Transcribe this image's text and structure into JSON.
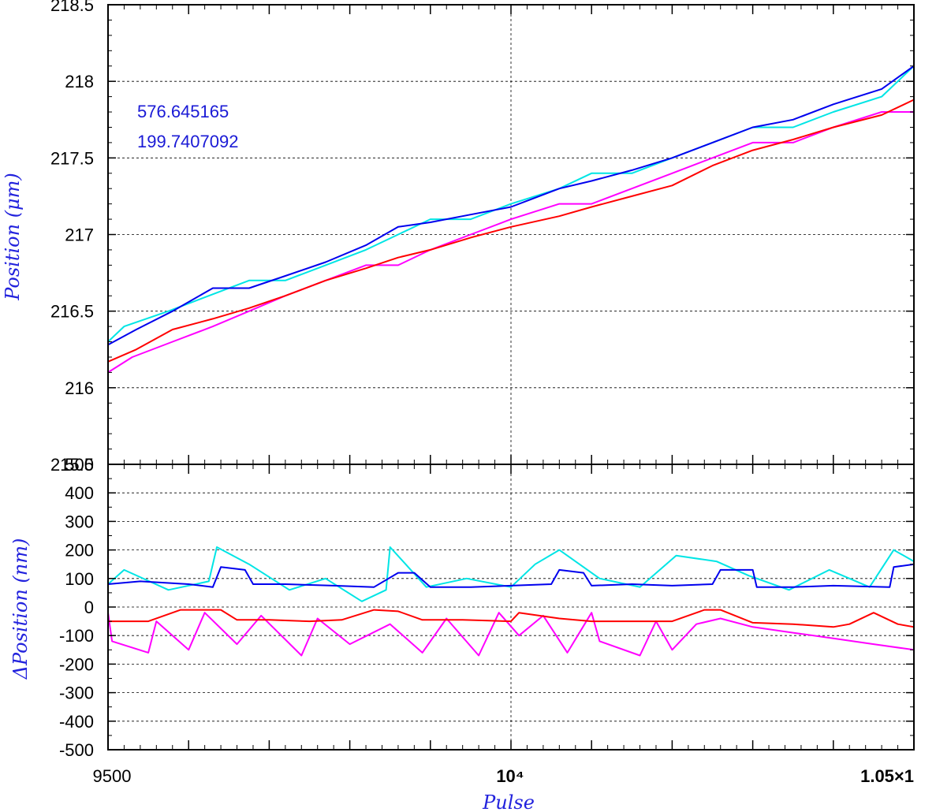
{
  "chart_data": [
    {
      "type": "line",
      "ylabel": "Position (μm)",
      "xlim": [
        9500,
        10500
      ],
      "ylim": [
        215.5,
        218.5
      ],
      "y_ticks": [
        "218.5",
        "218",
        "217.5",
        "217",
        "216.5",
        "216",
        "215.5"
      ],
      "grid": true,
      "annotations": [
        "576.645165",
        "199.7407092"
      ],
      "annotation_color": "#1a1ad6",
      "series": [
        {
          "color": "#00e5e5",
          "x": [
            9500,
            9520,
            9575,
            9625,
            9675,
            9720,
            9770,
            9820,
            9860,
            9900,
            9950,
            10000,
            10060,
            10100,
            10150,
            10200,
            10250,
            10300,
            10350,
            10400,
            10460,
            10500
          ],
          "y": [
            216.3,
            216.4,
            216.5,
            216.6,
            216.7,
            216.7,
            216.8,
            216.9,
            217.0,
            217.1,
            217.1,
            217.2,
            217.3,
            217.4,
            217.4,
            217.5,
            217.6,
            217.7,
            217.7,
            217.8,
            217.9,
            218.1
          ]
        },
        {
          "color": "#0000ee",
          "x": [
            9500,
            9535,
            9580,
            9630,
            9675,
            9720,
            9770,
            9820,
            9860,
            9900,
            9950,
            10000,
            10060,
            10100,
            10150,
            10200,
            10250,
            10300,
            10350,
            10400,
            10460,
            10500
          ],
          "y": [
            216.28,
            216.38,
            216.5,
            216.65,
            216.65,
            216.73,
            216.82,
            216.93,
            217.05,
            217.08,
            217.13,
            217.18,
            217.3,
            217.35,
            217.42,
            217.5,
            217.6,
            217.7,
            217.75,
            217.85,
            217.95,
            218.1
          ]
        },
        {
          "color": "#ff00ff",
          "x": [
            9500,
            9530,
            9580,
            9630,
            9675,
            9720,
            9770,
            9820,
            9860,
            9900,
            9950,
            10000,
            10060,
            10100,
            10150,
            10200,
            10250,
            10300,
            10350,
            10400,
            10460,
            10500
          ],
          "y": [
            216.1,
            216.2,
            216.3,
            216.4,
            216.5,
            216.6,
            216.7,
            216.8,
            216.8,
            216.9,
            217.0,
            217.1,
            217.2,
            217.2,
            217.3,
            217.4,
            217.5,
            217.6,
            217.6,
            217.7,
            217.8,
            217.8
          ]
        },
        {
          "color": "#ff0000",
          "x": [
            9500,
            9535,
            9580,
            9630,
            9675,
            9720,
            9770,
            9820,
            9860,
            9900,
            9950,
            10000,
            10060,
            10100,
            10150,
            10200,
            10250,
            10300,
            10350,
            10400,
            10460,
            10500
          ],
          "y": [
            216.17,
            216.25,
            216.38,
            216.45,
            216.52,
            216.6,
            216.7,
            216.78,
            216.85,
            216.9,
            216.98,
            217.05,
            217.12,
            217.18,
            217.25,
            217.32,
            217.45,
            217.55,
            217.62,
            217.7,
            217.78,
            217.88
          ]
        }
      ]
    },
    {
      "type": "line",
      "xlabel": "Pulse",
      "ylabel": "ΔPosition (nm)",
      "xlim": [
        9500,
        10500
      ],
      "ylim": [
        -500,
        500
      ],
      "y_ticks": [
        "500",
        "400",
        "300",
        "200",
        "100",
        "0",
        "-100",
        "-200",
        "-300",
        "-400",
        "-500"
      ],
      "x_ticks": [
        "9500",
        "10⁴",
        "1.05×1"
      ],
      "grid": true,
      "series": [
        {
          "color": "#00e5e5",
          "x": [
            9500,
            9520,
            9575,
            9625,
            9635,
            9675,
            9725,
            9770,
            9815,
            9845,
            9850,
            9895,
            9945,
            10000,
            10030,
            10060,
            10110,
            10160,
            10205,
            10255,
            10295,
            10345,
            10395,
            10445,
            10475,
            10500
          ],
          "y": [
            80,
            130,
            60,
            90,
            210,
            150,
            60,
            100,
            20,
            60,
            210,
            70,
            100,
            70,
            150,
            200,
            100,
            70,
            180,
            160,
            110,
            60,
            130,
            70,
            200,
            160
          ]
        },
        {
          "color": "#0000ee",
          "x": [
            9500,
            9540,
            9600,
            9630,
            9640,
            9670,
            9680,
            9720,
            9780,
            9830,
            9860,
            9880,
            9900,
            9950,
            10000,
            10050,
            10060,
            10090,
            10100,
            10150,
            10200,
            10250,
            10260,
            10300,
            10305,
            10350,
            10400,
            10470,
            10475,
            10500
          ],
          "y": [
            80,
            90,
            80,
            70,
            140,
            130,
            80,
            80,
            75,
            70,
            120,
            120,
            70,
            70,
            75,
            80,
            130,
            120,
            75,
            80,
            75,
            80,
            130,
            130,
            70,
            70,
            75,
            70,
            140,
            150
          ]
        },
        {
          "color": "#ff00ff",
          "x": [
            9500,
            9505,
            9550,
            9560,
            9600,
            9620,
            9660,
            9690,
            9740,
            9760,
            9800,
            9850,
            9890,
            9920,
            9960,
            9985,
            10010,
            10040,
            10070,
            10100,
            10110,
            10160,
            10180,
            10200,
            10230,
            10260,
            10300,
            10350,
            10400,
            10450,
            10500
          ],
          "y": [
            -20,
            -120,
            -160,
            -50,
            -150,
            -20,
            -130,
            -30,
            -170,
            -40,
            -130,
            -60,
            -160,
            -40,
            -170,
            -20,
            -100,
            -30,
            -160,
            -20,
            -120,
            -170,
            -50,
            -150,
            -60,
            -40,
            -70,
            -90,
            -110,
            -130,
            -150
          ]
        },
        {
          "color": "#ff0000",
          "x": [
            9500,
            9550,
            9590,
            9620,
            9640,
            9660,
            9700,
            9750,
            9790,
            9830,
            9860,
            9890,
            9940,
            10000,
            10010,
            10060,
            10100,
            10150,
            10200,
            10240,
            10260,
            10300,
            10350,
            10400,
            10420,
            10450,
            10480,
            10500
          ],
          "y": [
            -50,
            -50,
            -10,
            -10,
            -10,
            -45,
            -45,
            -50,
            -45,
            -10,
            -15,
            -45,
            -45,
            -50,
            -20,
            -40,
            -50,
            -50,
            -50,
            -10,
            -10,
            -55,
            -60,
            -70,
            -60,
            -20,
            -60,
            -70
          ]
        }
      ]
    }
  ]
}
